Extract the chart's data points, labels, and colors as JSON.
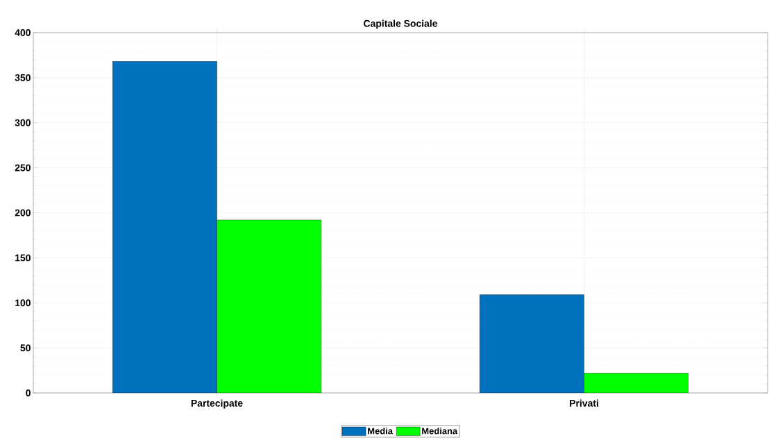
{
  "chart_data": {
    "type": "bar",
    "title": "Capitale Sociale",
    "categories": [
      "Partecipate",
      "Privati"
    ],
    "series": [
      {
        "name": "Media",
        "color": "#0072bd",
        "values": [
          368,
          109
        ]
      },
      {
        "name": "Mediana",
        "color": "#00ff00",
        "values": [
          192,
          22
        ]
      }
    ],
    "ylim": [
      0,
      400
    ],
    "yticks": [
      0,
      50,
      100,
      150,
      200,
      250,
      300,
      350,
      400
    ],
    "grid": true,
    "legend": "bottom"
  }
}
